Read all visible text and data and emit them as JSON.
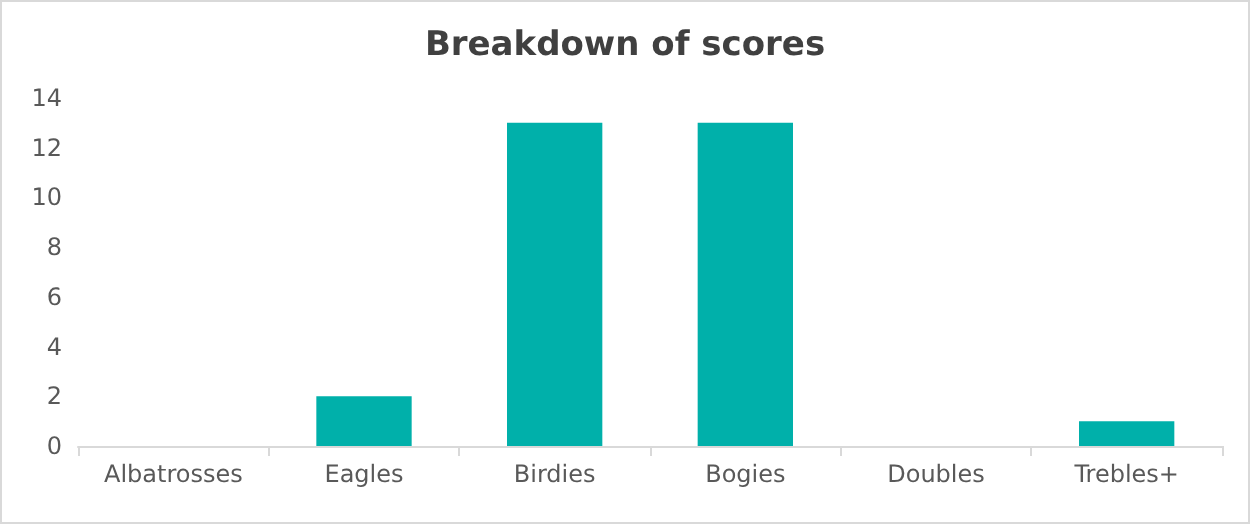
{
  "chart_data": {
    "type": "bar",
    "title": "Breakdown of scores",
    "categories": [
      "Albatrosses",
      "Eagles",
      "Birdies",
      "Bogies",
      "Doubles",
      "Trebles+"
    ],
    "values": [
      0,
      2,
      13,
      13,
      0,
      1
    ],
    "color": "#00b0aa",
    "ylim": [
      0,
      14
    ],
    "yticks": [
      0,
      2,
      4,
      6,
      8,
      10,
      12,
      14
    ],
    "grid": false
  }
}
